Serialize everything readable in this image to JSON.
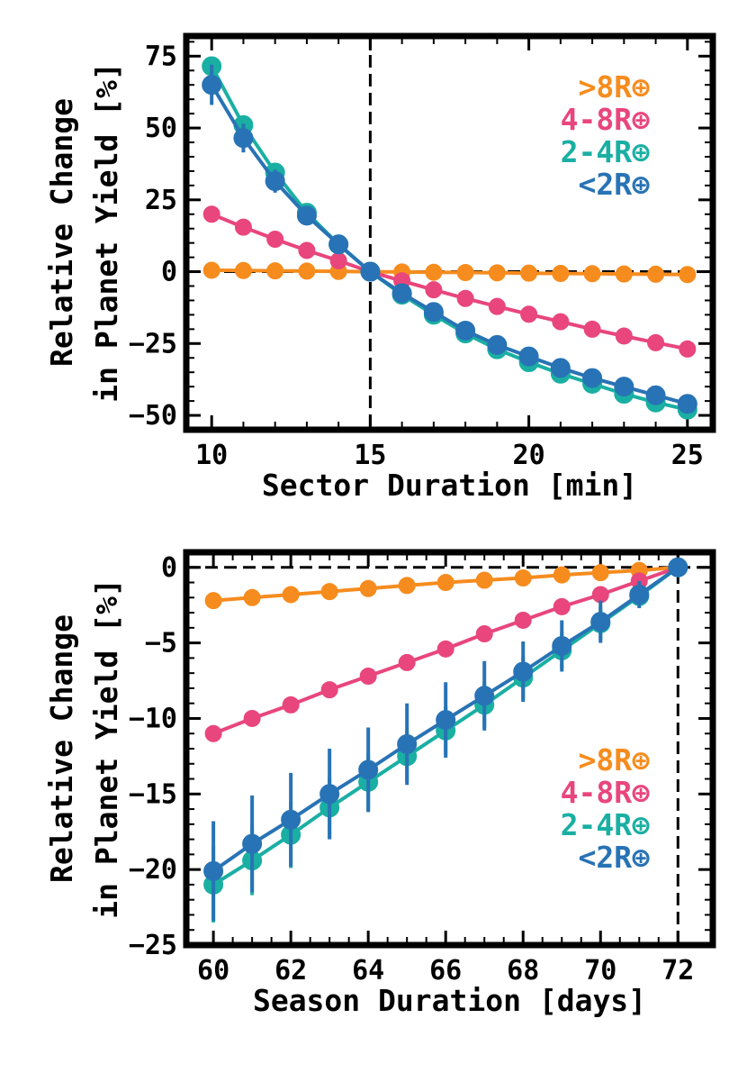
{
  "colors": {
    "gt8": "#F68C1E",
    "r4to8": "#E8467C",
    "r2to4": "#1AAFA3",
    "lt2": "#2873B5",
    "axis": "#000000"
  },
  "chart_data": [
    {
      "type": "line",
      "xlabel": "Sector Duration [min]",
      "ylabel_line1": "Relative Change",
      "ylabel_line2": "in Planet Yield [%]",
      "xlim": [
        9.2,
        25.8
      ],
      "ylim": [
        -55,
        82
      ],
      "xticks": [
        10,
        15,
        20,
        25
      ],
      "yticks": [
        -50,
        -25,
        0,
        25,
        50,
        75
      ],
      "xtick_labels": [
        "10",
        "15",
        "20",
        "25"
      ],
      "ytick_labels": [
        "−50",
        "−25",
        "0",
        "25",
        "50",
        "75"
      ],
      "reference_lines": {
        "vertical_x": 15,
        "horizontal_y": 0
      },
      "legend_position": "top-right",
      "x": [
        10,
        11,
        12,
        13,
        14,
        15,
        16,
        17,
        18,
        19,
        20,
        21,
        22,
        23,
        24,
        25
      ],
      "series": [
        {
          "name": ">8R⊕",
          "color_key": "gt8",
          "values": [
            0.5,
            0.4,
            0.3,
            0.2,
            0.1,
            0,
            -0.1,
            -0.2,
            -0.3,
            -0.4,
            -0.5,
            -0.6,
            -0.7,
            -0.8,
            -0.9,
            -1.0
          ],
          "errors": []
        },
        {
          "name": "4-8R⊕",
          "color_key": "r4to8",
          "values": [
            20,
            15.5,
            11.3,
            7.4,
            3.8,
            0,
            -3.2,
            -6.3,
            -9.3,
            -12.1,
            -14.8,
            -17.4,
            -20.0,
            -22.4,
            -24.7,
            -26.9
          ],
          "errors": []
        },
        {
          "name": "2-4R⊕",
          "color_key": "r2to4",
          "values": [
            71.5,
            51,
            34.5,
            20.5,
            9.5,
            0,
            -8,
            -15,
            -21.5,
            -27,
            -31.5,
            -35.5,
            -39,
            -42.5,
            -45.5,
            -48
          ],
          "errors": []
        },
        {
          "name": "<2R⊕",
          "color_key": "lt2",
          "values": [
            65,
            46.5,
            31.5,
            19.5,
            9.5,
            0,
            -7.5,
            -14,
            -20.5,
            -25.5,
            -29.5,
            -33.5,
            -37,
            -40,
            -43,
            -46
          ],
          "errors": [
            7,
            5,
            4,
            3,
            0,
            0,
            0,
            0,
            0,
            0,
            0,
            0,
            0,
            0,
            0,
            0
          ]
        }
      ]
    },
    {
      "type": "line",
      "xlabel": "Season Duration [days]",
      "ylabel_line1": "Relative Change",
      "ylabel_line2": "in Planet Yield [%]",
      "xlim": [
        59.3,
        72.9
      ],
      "ylim": [
        -25,
        1
      ],
      "xticks": [
        60,
        62,
        64,
        66,
        68,
        70,
        72
      ],
      "yticks": [
        -25,
        -20,
        -15,
        -10,
        -5,
        0
      ],
      "xtick_labels": [
        "60",
        "62",
        "64",
        "66",
        "68",
        "70",
        "72"
      ],
      "ytick_labels": [
        "−25",
        "−20",
        "−15",
        "−10",
        "−5",
        "0"
      ],
      "reference_lines": {
        "vertical_x": 72,
        "horizontal_y": 0
      },
      "legend_position": "bottom-right",
      "x": [
        60,
        61,
        62,
        63,
        64,
        65,
        66,
        67,
        68,
        69,
        70,
        71,
        72
      ],
      "series": [
        {
          "name": ">8R⊕",
          "color_key": "gt8",
          "values": [
            -2.2,
            -2.0,
            -1.8,
            -1.6,
            -1.4,
            -1.2,
            -1.0,
            -0.85,
            -0.7,
            -0.5,
            -0.35,
            -0.2,
            0
          ],
          "errors": []
        },
        {
          "name": "4-8R⊕",
          "color_key": "r4to8",
          "values": [
            -11.0,
            -10.0,
            -9.1,
            -8.1,
            -7.2,
            -6.3,
            -5.4,
            -4.4,
            -3.5,
            -2.6,
            -1.8,
            -0.9,
            0
          ],
          "errors": []
        },
        {
          "name": "2-4R⊕",
          "color_key": "r2to4",
          "values": [
            -21.0,
            -19.4,
            -17.7,
            -15.9,
            -14.2,
            -12.5,
            -10.8,
            -9.1,
            -7.3,
            -5.5,
            -3.7,
            -1.9,
            0
          ],
          "errors": [
            2.5,
            2.3,
            2.2,
            2.0,
            1.9,
            1.7,
            1.6,
            1.5,
            1.4,
            1.2,
            1.1,
            0.6,
            0
          ]
        },
        {
          "name": "<2R⊕",
          "color_key": "lt2",
          "values": [
            -20.1,
            -18.3,
            -16.7,
            -15.0,
            -13.4,
            -11.7,
            -10.1,
            -8.5,
            -6.9,
            -5.2,
            -3.6,
            -1.8,
            0
          ],
          "errors": [
            3.3,
            3.2,
            3.1,
            3.0,
            2.8,
            2.7,
            2.5,
            2.3,
            2.0,
            1.7,
            1.4,
            0.9,
            0
          ]
        }
      ]
    }
  ]
}
